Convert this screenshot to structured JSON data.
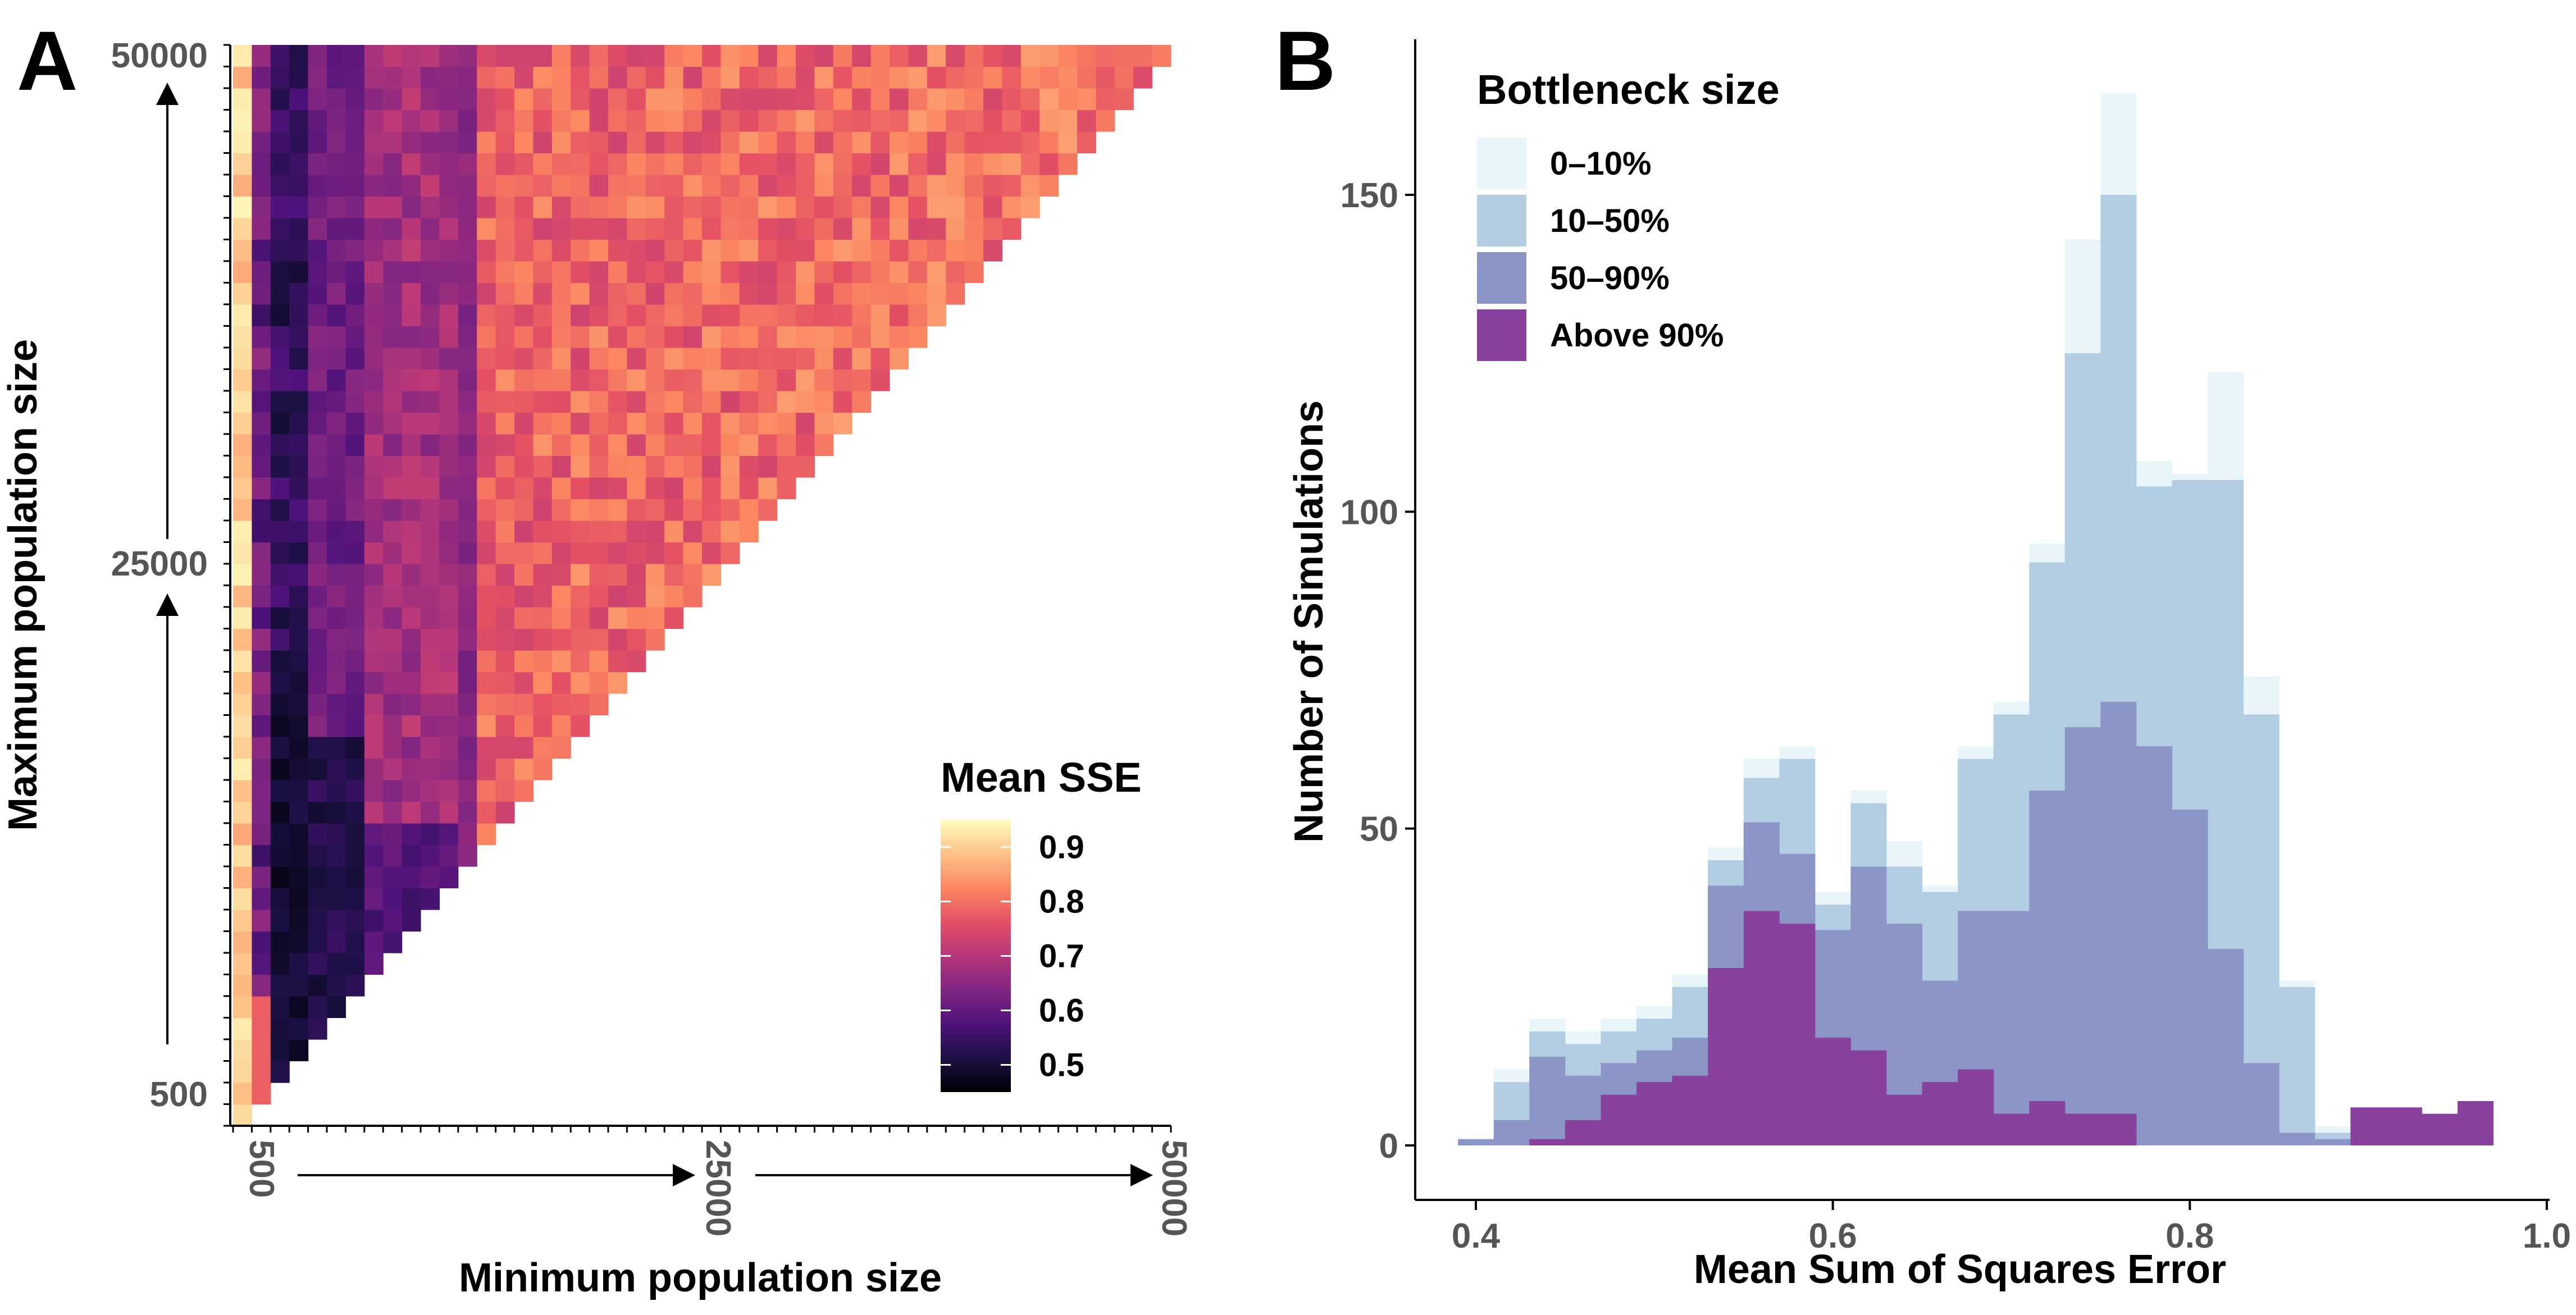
{
  "panels": {
    "a_label": "A",
    "b_label": "B"
  },
  "chart_data": [
    {
      "type": "heatmap",
      "panel": "A",
      "xlabel": "Minimum population size",
      "ylabel": "Maximum population size",
      "x_ticks": [
        "500",
        "25000",
        "50000"
      ],
      "y_ticks": [
        "500",
        "25000",
        "50000"
      ],
      "xlim": [
        0,
        50000
      ],
      "ylim": [
        0,
        50000
      ],
      "grid_cells": 50,
      "legend_title": "Mean SSE",
      "colorbar_ticks": [
        "0.9",
        "0.8",
        "0.7",
        "0.6",
        "0.5"
      ],
      "colorbar_range": [
        0.45,
        0.95
      ],
      "colorscale": [
        "#000004",
        "#1c1044",
        "#4f127b",
        "#812581",
        "#b5367a",
        "#e55064",
        "#fb8761",
        "#fec287",
        "#fcfdbf"
      ],
      "note_values": "cells above the diagonal are empty; values roughly 0.45 near min-size ~3000-5000 and max-size < 15000, rising to ~0.8 for large minimum sizes, ~0.9 at the smallest minimum size"
    },
    {
      "type": "bar",
      "panel": "B",
      "subtype": "overlaid histogram",
      "xlabel": "Mean Sum of Squares Error",
      "ylabel": "Number of Simulations",
      "x_ticks": [
        "0.4",
        "0.6",
        "0.8",
        "1.0"
      ],
      "y_ticks": [
        "0",
        "50",
        "100",
        "150"
      ],
      "xlim": [
        0.36,
        1.0
      ],
      "ylim": [
        -5,
        175
      ],
      "bin_width": 0.02,
      "x": [
        0.4,
        0.42,
        0.44,
        0.46,
        0.48,
        0.5,
        0.52,
        0.54,
        0.56,
        0.58,
        0.6,
        0.62,
        0.64,
        0.66,
        0.68,
        0.7,
        0.72,
        0.74,
        0.76,
        0.78,
        0.8,
        0.82,
        0.84,
        0.86,
        0.88,
        0.9,
        0.92,
        0.94,
        0.96
      ],
      "legend_title": "Bottleneck size",
      "legend_position": "top-left",
      "series": [
        {
          "name": "0–10%",
          "color": "#e8f6f9",
          "values": [
            0,
            12,
            20,
            18,
            20,
            22,
            27,
            47,
            61,
            63,
            40,
            56,
            48,
            41,
            63,
            70,
            95,
            143,
            166,
            108,
            106,
            122,
            74,
            26,
            3,
            0,
            0,
            0,
            0
          ]
        },
        {
          "name": "10–50%",
          "color": "#b3cde3",
          "values": [
            0,
            10,
            18,
            16,
            18,
            20,
            25,
            45,
            58,
            61,
            38,
            54,
            44,
            40,
            61,
            68,
            92,
            125,
            150,
            104,
            105,
            105,
            68,
            25,
            2,
            0,
            0,
            0,
            0
          ]
        },
        {
          "name": "50–90%",
          "color": "#8c96c6",
          "values": [
            1,
            4,
            14,
            11,
            13,
            15,
            17,
            41,
            51,
            46,
            34,
            44,
            35,
            26,
            37,
            37,
            56,
            66,
            70,
            63,
            53,
            31,
            13,
            2,
            1,
            0,
            0,
            0,
            0
          ]
        },
        {
          "name": "Above 90%",
          "color": "#88419d",
          "values": [
            0,
            0,
            1,
            4,
            8,
            10,
            11,
            28,
            37,
            35,
            17,
            15,
            8,
            10,
            12,
            5,
            7,
            5,
            5,
            0,
            0,
            0,
            0,
            0,
            0,
            6,
            6,
            5,
            7
          ]
        }
      ]
    }
  ]
}
